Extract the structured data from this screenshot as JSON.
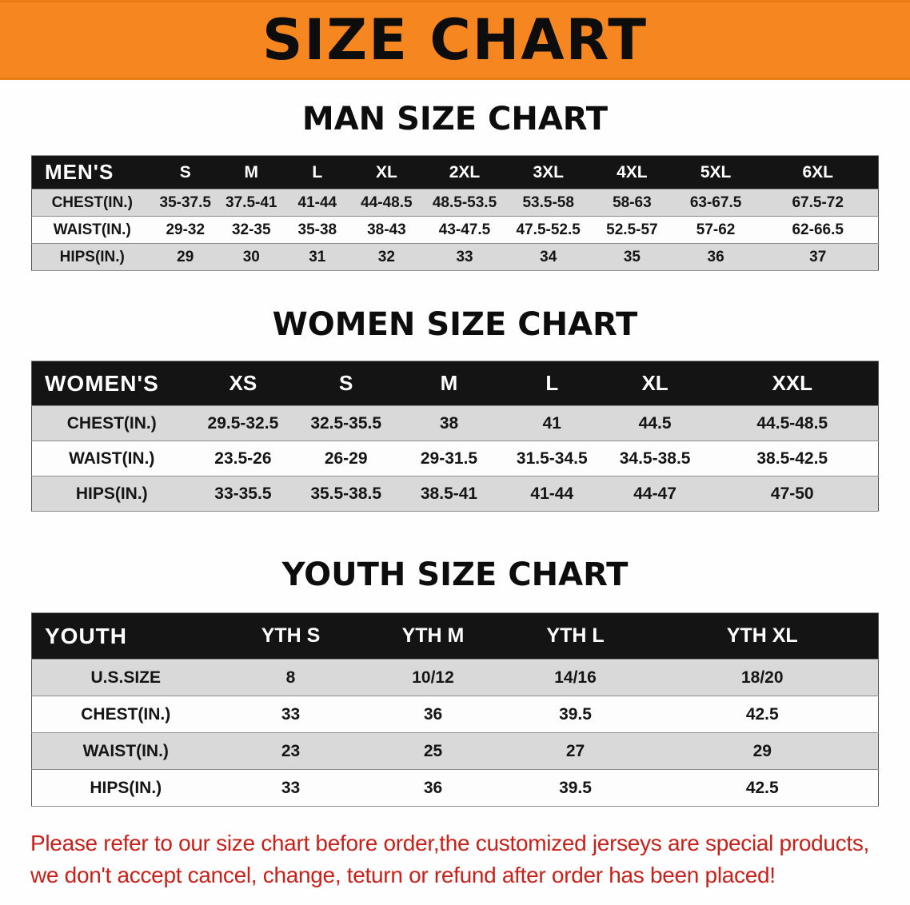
{
  "banner": {
    "title": "SIZE CHART",
    "bg_color": "#F6861F",
    "text_color": "#0d0d0d"
  },
  "sections": {
    "men": {
      "title": "MAN SIZE CHART",
      "table": {
        "header": [
          "MEN'S",
          "S",
          "M",
          "L",
          "XL",
          "2XL",
          "3XL",
          "4XL",
          "5XL",
          "6XL"
        ],
        "rows": [
          [
            "CHEST(IN.)",
            "35-37.5",
            "37.5-41",
            "41-44",
            "44-48.5",
            "48.5-53.5",
            "53.5-58",
            "58-63",
            "63-67.5",
            "67.5-72"
          ],
          [
            "WAIST(IN.)",
            "29-32",
            "32-35",
            "35-38",
            "38-43",
            "43-47.5",
            "47.5-52.5",
            "52.5-57",
            "57-62",
            "62-66.5"
          ],
          [
            "HIPS(IN.)",
            "29",
            "30",
            "31",
            "32",
            "33",
            "34",
            "35",
            "36",
            "37"
          ]
        ]
      }
    },
    "women": {
      "title": "WOMEN SIZE CHART",
      "table": {
        "header": [
          "WOMEN'S",
          "XS",
          "S",
          "M",
          "L",
          "XL",
          "XXL"
        ],
        "rows": [
          [
            "CHEST(IN.)",
            "29.5-32.5",
            "32.5-35.5",
            "38",
            "41",
            "44.5",
            "44.5-48.5"
          ],
          [
            "WAIST(IN.)",
            "23.5-26",
            "26-29",
            "29-31.5",
            "31.5-34.5",
            "34.5-38.5",
            "38.5-42.5"
          ],
          [
            "HIPS(IN.)",
            "33-35.5",
            "35.5-38.5",
            "38.5-41",
            "41-44",
            "44-47",
            "47-50"
          ]
        ]
      }
    },
    "youth": {
      "title": "YOUTH SIZE CHART",
      "table": {
        "header": [
          "YOUTH",
          "YTH S",
          "YTH M",
          "YTH L",
          "YTH XL"
        ],
        "rows": [
          [
            "U.S.SIZE",
            "8",
            "10/12",
            "14/16",
            "18/20"
          ],
          [
            "CHEST(IN.)",
            "33",
            "36",
            "39.5",
            "42.5"
          ],
          [
            "WAIST(IN.)",
            "23",
            "25",
            "27",
            "29"
          ],
          [
            "HIPS(IN.)",
            "33",
            "36",
            "39.5",
            "42.5"
          ]
        ]
      }
    }
  },
  "disclaimer": {
    "line1": "Please refer to our size chart before order,the customized jerseys are special products,",
    "line2": "we don't accept cancel, change, teturn or refund after order has been placed!",
    "text_color": "#C9211A"
  }
}
